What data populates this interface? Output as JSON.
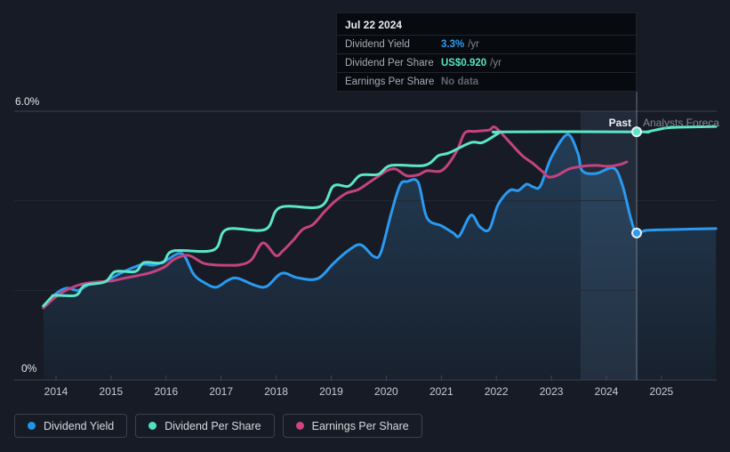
{
  "tooltip": {
    "date": "Jul 22 2024",
    "rows": [
      {
        "label": "Dividend Yield",
        "value": "3.3%",
        "unit": "/yr",
        "value_color": "#2f9ff2"
      },
      {
        "label": "Dividend Per Share",
        "value": "US$0.920",
        "unit": "/yr",
        "value_color": "#55e6c4"
      },
      {
        "label": "Earnings Per Share",
        "value": "No data",
        "unit": "",
        "value_color": "#60666e"
      }
    ]
  },
  "annotations": {
    "past": "Past",
    "forecast": "Analysts Foreca"
  },
  "legend": [
    {
      "label": "Dividend Yield",
      "color": "#1e96eb"
    },
    {
      "label": "Dividend Per Share",
      "color": "#4be3c3"
    },
    {
      "label": "Earnings Per Share",
      "color": "#d2447f"
    }
  ],
  "chart_data": {
    "type": "line",
    "y_axis": {
      "unit": "%",
      "range": [
        0,
        6
      ],
      "gridlines": [
        0,
        2,
        4,
        6
      ],
      "top_label": "6.0%",
      "bottom_label": "0%"
    },
    "x_axis": {
      "ticks": [
        2014,
        2015,
        2016,
        2017,
        2018,
        2019,
        2020,
        2021,
        2022,
        2023,
        2024,
        2025
      ],
      "range": [
        2013.77,
        2026
      ]
    },
    "divider_x": 2024.55,
    "highlight_band": [
      2023.53,
      2024.55
    ],
    "series": [
      {
        "name": "Dividend Yield",
        "color": "#2b9af0",
        "area": true,
        "marker_at_divider": 3.28,
        "points": [
          [
            2013.77,
            1.65
          ],
          [
            2014.0,
            1.93
          ],
          [
            2014.19,
            2.05
          ],
          [
            2014.4,
            2.0
          ],
          [
            2014.6,
            2.13
          ],
          [
            2014.87,
            2.19
          ],
          [
            2015.2,
            2.4
          ],
          [
            2015.57,
            2.58
          ],
          [
            2015.76,
            2.56
          ],
          [
            2015.99,
            2.66
          ],
          [
            2016.29,
            2.82
          ],
          [
            2016.5,
            2.36
          ],
          [
            2016.7,
            2.17
          ],
          [
            2016.91,
            2.07
          ],
          [
            2017.13,
            2.23
          ],
          [
            2017.3,
            2.27
          ],
          [
            2017.62,
            2.11
          ],
          [
            2017.83,
            2.09
          ],
          [
            2018.1,
            2.38
          ],
          [
            2018.39,
            2.28
          ],
          [
            2018.75,
            2.26
          ],
          [
            2019.04,
            2.6
          ],
          [
            2019.28,
            2.86
          ],
          [
            2019.53,
            3.02
          ],
          [
            2019.77,
            2.76
          ],
          [
            2019.9,
            2.84
          ],
          [
            2020.09,
            3.72
          ],
          [
            2020.25,
            4.35
          ],
          [
            2020.38,
            4.43
          ],
          [
            2020.58,
            4.41
          ],
          [
            2020.74,
            3.62
          ],
          [
            2021.01,
            3.44
          ],
          [
            2021.22,
            3.28
          ],
          [
            2021.33,
            3.22
          ],
          [
            2021.54,
            3.68
          ],
          [
            2021.7,
            3.42
          ],
          [
            2021.87,
            3.36
          ],
          [
            2022.03,
            3.91
          ],
          [
            2022.24,
            4.23
          ],
          [
            2022.4,
            4.23
          ],
          [
            2022.55,
            4.37
          ],
          [
            2022.67,
            4.31
          ],
          [
            2022.8,
            4.33
          ],
          [
            2023.0,
            4.97
          ],
          [
            2023.29,
            5.48
          ],
          [
            2023.48,
            5.07
          ],
          [
            2023.56,
            4.67
          ],
          [
            2023.81,
            4.61
          ],
          [
            2024.13,
            4.73
          ],
          [
            2024.29,
            4.35
          ],
          [
            2024.45,
            3.57
          ],
          [
            2024.55,
            3.28
          ]
        ],
        "forecast": [
          [
            2024.55,
            3.28
          ],
          [
            2024.73,
            3.34
          ],
          [
            2025.26,
            3.36
          ],
          [
            2025.99,
            3.38
          ]
        ]
      },
      {
        "name": "Earnings Per Share",
        "color": "#c4437f",
        "points": [
          [
            2013.77,
            1.61
          ],
          [
            2013.95,
            1.81
          ],
          [
            2014.11,
            1.95
          ],
          [
            2014.27,
            2.05
          ],
          [
            2014.44,
            2.13
          ],
          [
            2014.68,
            2.18
          ],
          [
            2015.0,
            2.21
          ],
          [
            2015.24,
            2.27
          ],
          [
            2015.49,
            2.33
          ],
          [
            2015.73,
            2.4
          ],
          [
            2015.97,
            2.52
          ],
          [
            2016.13,
            2.68
          ],
          [
            2016.33,
            2.78
          ],
          [
            2016.46,
            2.76
          ],
          [
            2016.67,
            2.61
          ],
          [
            2016.86,
            2.57
          ],
          [
            2017.1,
            2.56
          ],
          [
            2017.34,
            2.57
          ],
          [
            2017.55,
            2.68
          ],
          [
            2017.76,
            3.06
          ],
          [
            2017.99,
            2.78
          ],
          [
            2018.12,
            2.88
          ],
          [
            2018.31,
            3.12
          ],
          [
            2018.48,
            3.36
          ],
          [
            2018.67,
            3.47
          ],
          [
            2018.88,
            3.76
          ],
          [
            2019.07,
            3.99
          ],
          [
            2019.28,
            4.17
          ],
          [
            2019.49,
            4.25
          ],
          [
            2019.69,
            4.41
          ],
          [
            2019.86,
            4.55
          ],
          [
            2020.01,
            4.67
          ],
          [
            2020.17,
            4.71
          ],
          [
            2020.37,
            4.56
          ],
          [
            2020.58,
            4.58
          ],
          [
            2020.74,
            4.67
          ],
          [
            2020.98,
            4.66
          ],
          [
            2021.14,
            4.84
          ],
          [
            2021.3,
            5.16
          ],
          [
            2021.43,
            5.52
          ],
          [
            2021.62,
            5.55
          ],
          [
            2021.87,
            5.58
          ],
          [
            2021.98,
            5.64
          ],
          [
            2022.24,
            5.31
          ],
          [
            2022.47,
            5.01
          ],
          [
            2022.67,
            4.83
          ],
          [
            2022.84,
            4.65
          ],
          [
            2022.95,
            4.53
          ],
          [
            2023.11,
            4.57
          ],
          [
            2023.32,
            4.71
          ],
          [
            2023.56,
            4.77
          ],
          [
            2023.81,
            4.79
          ],
          [
            2024.05,
            4.77
          ],
          [
            2024.24,
            4.81
          ],
          [
            2024.37,
            4.87
          ]
        ]
      },
      {
        "name": "Dividend Per Share",
        "color": "#5ce6c8",
        "marker_at_divider": 5.54,
        "points": [
          [
            2013.77,
            1.65
          ],
          [
            2013.92,
            1.85
          ],
          [
            2013.98,
            1.89
          ],
          [
            2014.36,
            1.89
          ],
          [
            2014.52,
            2.11
          ],
          [
            2014.89,
            2.19
          ],
          [
            2015.08,
            2.42
          ],
          [
            2015.44,
            2.42
          ],
          [
            2015.6,
            2.62
          ],
          [
            2015.94,
            2.62
          ],
          [
            2016.13,
            2.88
          ],
          [
            2016.86,
            2.9
          ],
          [
            2017.1,
            3.36
          ],
          [
            2017.8,
            3.36
          ],
          [
            2018.07,
            3.85
          ],
          [
            2018.8,
            3.87
          ],
          [
            2019.04,
            4.33
          ],
          [
            2019.32,
            4.33
          ],
          [
            2019.53,
            4.57
          ],
          [
            2019.85,
            4.59
          ],
          [
            2020.09,
            4.79
          ],
          [
            2020.69,
            4.79
          ],
          [
            2020.95,
            5.01
          ],
          [
            2021.14,
            5.07
          ],
          [
            2021.54,
            5.3
          ],
          [
            2021.75,
            5.3
          ],
          [
            2022.03,
            5.5
          ],
          [
            2022.14,
            5.54
          ],
          [
            2024.55,
            5.54
          ]
        ],
        "forecast": [
          [
            2024.55,
            5.54
          ],
          [
            2024.73,
            5.54
          ],
          [
            2025.05,
            5.62
          ],
          [
            2025.26,
            5.64
          ],
          [
            2025.99,
            5.66
          ]
        ]
      }
    ]
  }
}
